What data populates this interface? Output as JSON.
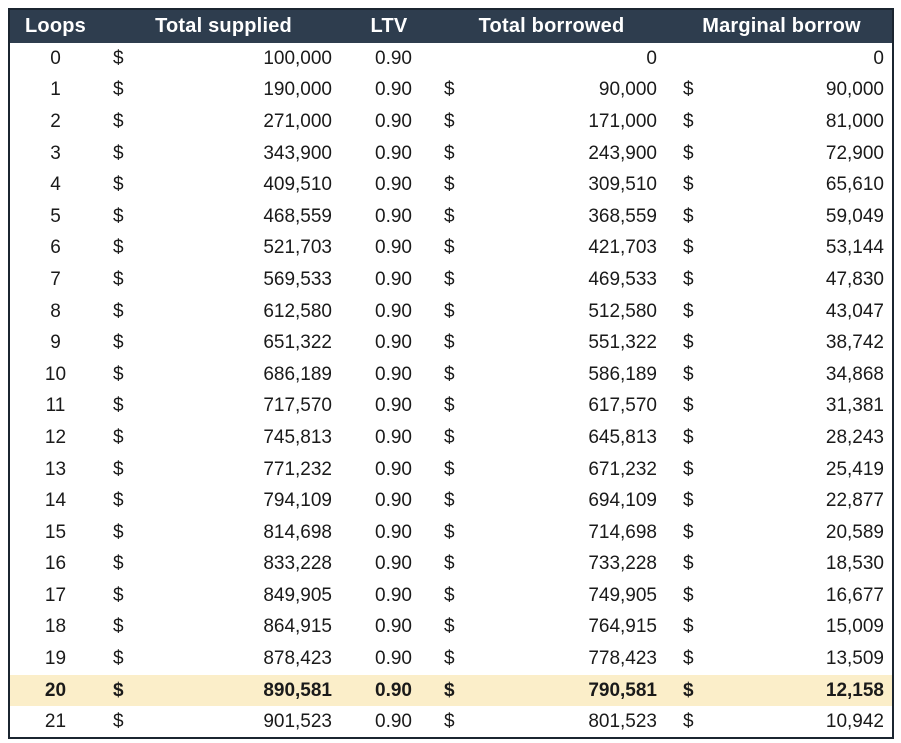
{
  "chart_data": {
    "type": "table",
    "columns": [
      "Loops",
      "Total supplied",
      "LTV",
      "Total borrowed",
      "Marginal borrow"
    ],
    "rows": [
      [
        0,
        100000,
        0.9,
        0,
        0
      ],
      [
        1,
        190000,
        0.9,
        90000,
        90000
      ],
      [
        2,
        271000,
        0.9,
        171000,
        81000
      ],
      [
        3,
        343900,
        0.9,
        243900,
        72900
      ],
      [
        4,
        409510,
        0.9,
        309510,
        65610
      ],
      [
        5,
        468559,
        0.9,
        368559,
        59049
      ],
      [
        6,
        521703,
        0.9,
        421703,
        53144
      ],
      [
        7,
        569533,
        0.9,
        469533,
        47830
      ],
      [
        8,
        612580,
        0.9,
        512580,
        43047
      ],
      [
        9,
        651322,
        0.9,
        551322,
        38742
      ],
      [
        10,
        686189,
        0.9,
        586189,
        34868
      ],
      [
        11,
        717570,
        0.9,
        617570,
        31381
      ],
      [
        12,
        745813,
        0.9,
        645813,
        28243
      ],
      [
        13,
        771232,
        0.9,
        671232,
        25419
      ],
      [
        14,
        794109,
        0.9,
        694109,
        22877
      ],
      [
        15,
        814698,
        0.9,
        714698,
        20589
      ],
      [
        16,
        833228,
        0.9,
        733228,
        18530
      ],
      [
        17,
        849905,
        0.9,
        749905,
        16677
      ],
      [
        18,
        864915,
        0.9,
        764915,
        15009
      ],
      [
        19,
        878423,
        0.9,
        778423,
        13509
      ],
      [
        20,
        890581,
        0.9,
        790581,
        12158
      ],
      [
        21,
        901523,
        0.9,
        801523,
        10942
      ]
    ],
    "highlighted_row_loops": 20,
    "currency_symbol": "$",
    "ltv_decimals": 2,
    "notes": "Row with Loops=0 shows plain 0 (no currency symbol) in borrowed columns; row 20 is bold on a cream highlight."
  },
  "colors": {
    "header_bg": "#2E3D4E",
    "header_text": "#FFFFFF",
    "body_bg": "#FFFFFF",
    "body_text": "#1A1A1A",
    "highlight_bg": "#FBEEC9",
    "border": "#1B2530"
  }
}
